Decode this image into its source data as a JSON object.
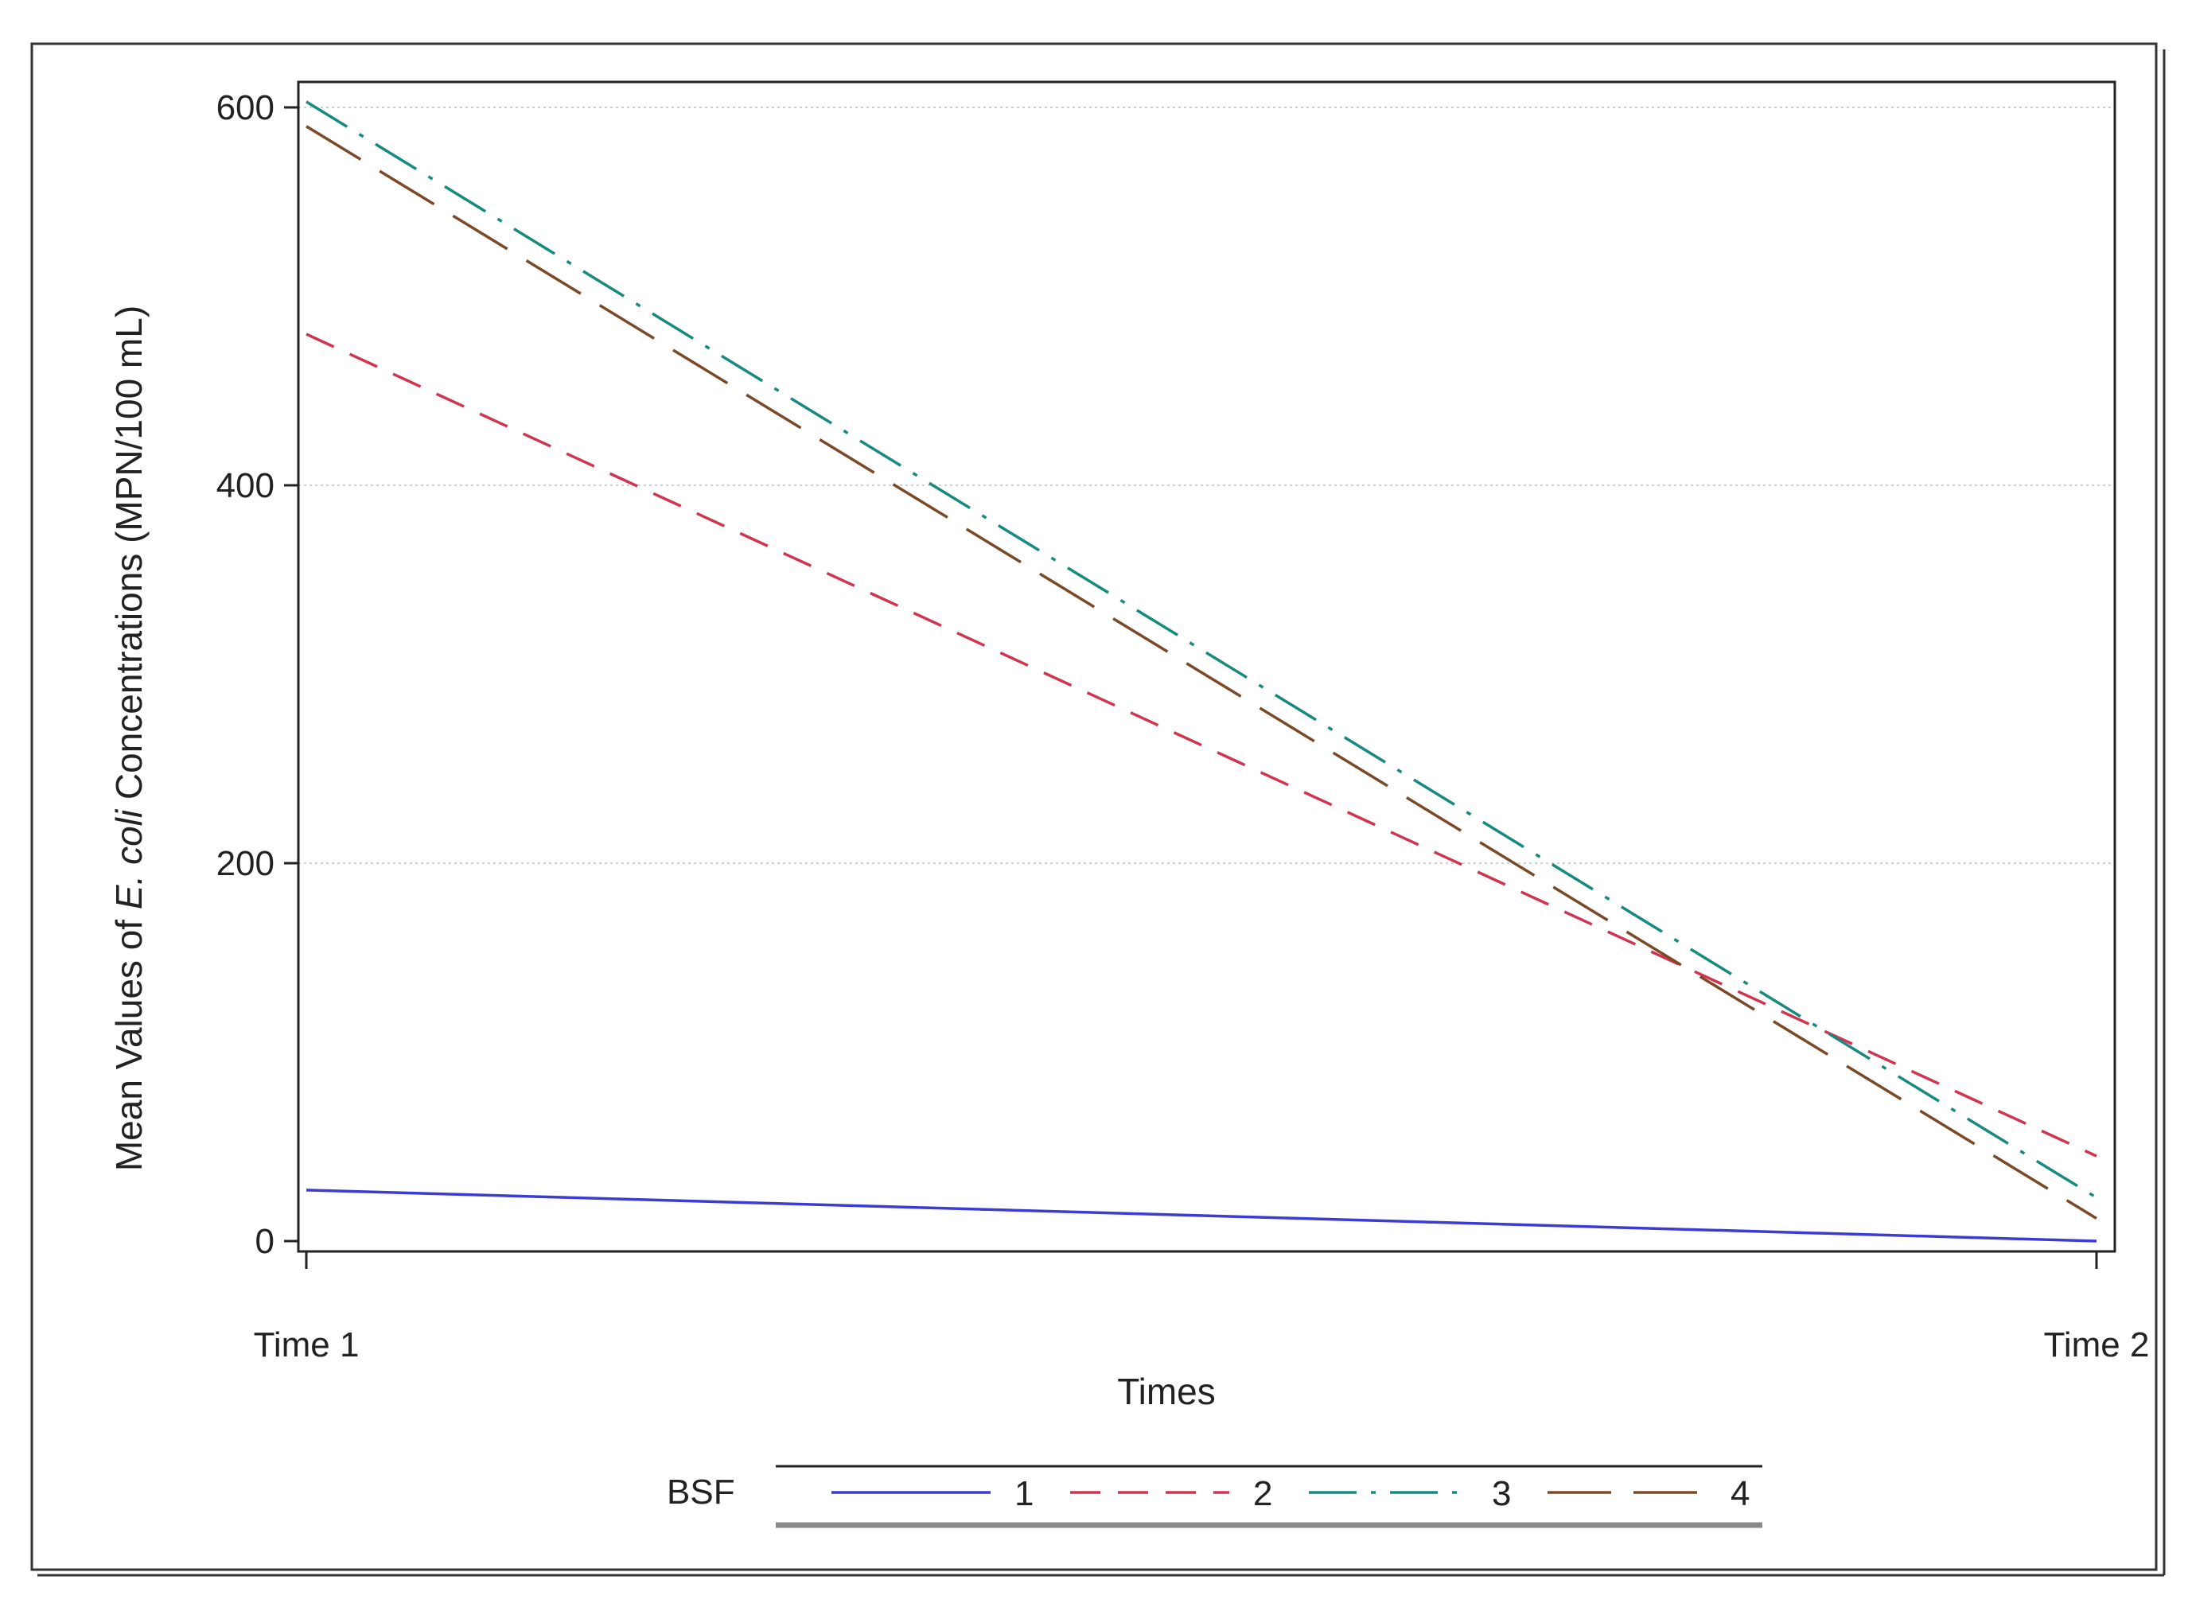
{
  "chart_data": {
    "type": "line",
    "title": "",
    "xlabel": "Times",
    "ylabel_parts": [
      "Mean Values of ",
      "E. coli",
      " Concentrations (MPN/100 mL)"
    ],
    "categories": [
      "Time 1",
      "Time 2"
    ],
    "ylim": [
      0,
      600
    ],
    "yticks": [
      0,
      200,
      400,
      600
    ],
    "grid": "horizontal-dotted",
    "legend": {
      "title": "BSF",
      "position": "bottom"
    },
    "series": [
      {
        "name": "1",
        "values": [
          27,
          0
        ],
        "color": "#3b3bd6",
        "dash": "solid"
      },
      {
        "name": "2",
        "values": [
          480,
          45
        ],
        "color": "#d0344f",
        "dash": "dashed"
      },
      {
        "name": "3",
        "values": [
          603,
          23
        ],
        "color": "#178a80",
        "dash": "dashdot"
      },
      {
        "name": "4",
        "values": [
          590,
          12
        ],
        "color": "#7a4a28",
        "dash": "longdash"
      }
    ]
  }
}
